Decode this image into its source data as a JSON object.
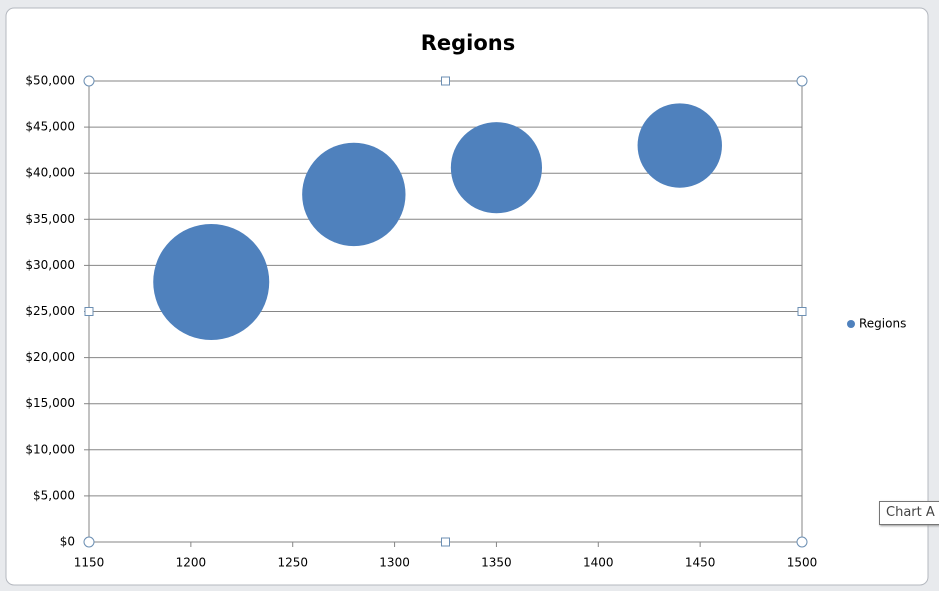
{
  "chart_data": {
    "type": "bubble",
    "title": "Regions",
    "series": [
      {
        "name": "Regions",
        "color": "#4f81bd",
        "x": [
          1210,
          1280,
          1350,
          1440
        ],
        "values": [
          28200,
          37700,
          40600,
          43000
        ],
        "sizes": [
          34,
          27,
          21,
          18
        ]
      }
    ],
    "xlim": [
      1150,
      1500
    ],
    "xticks": [
      1150,
      1200,
      1250,
      1300,
      1350,
      1400,
      1450,
      1500
    ],
    "ylim": [
      0,
      50000
    ],
    "yticks": [
      {
        "value": 0,
        "label": "$0"
      },
      {
        "value": 5000,
        "label": "$5,000"
      },
      {
        "value": 10000,
        "label": "$10,000"
      },
      {
        "value": 15000,
        "label": "$15,000"
      },
      {
        "value": 20000,
        "label": "$20,000"
      },
      {
        "value": 25000,
        "label": "$25,000"
      },
      {
        "value": 30000,
        "label": "$30,000"
      },
      {
        "value": 35000,
        "label": "$35,000"
      },
      {
        "value": 40000,
        "label": "$40,000"
      },
      {
        "value": 45000,
        "label": "$45,000"
      },
      {
        "value": 50000,
        "label": "$50,000"
      }
    ],
    "grid": true,
    "legend": "right",
    "tooltip": "Chart A"
  }
}
